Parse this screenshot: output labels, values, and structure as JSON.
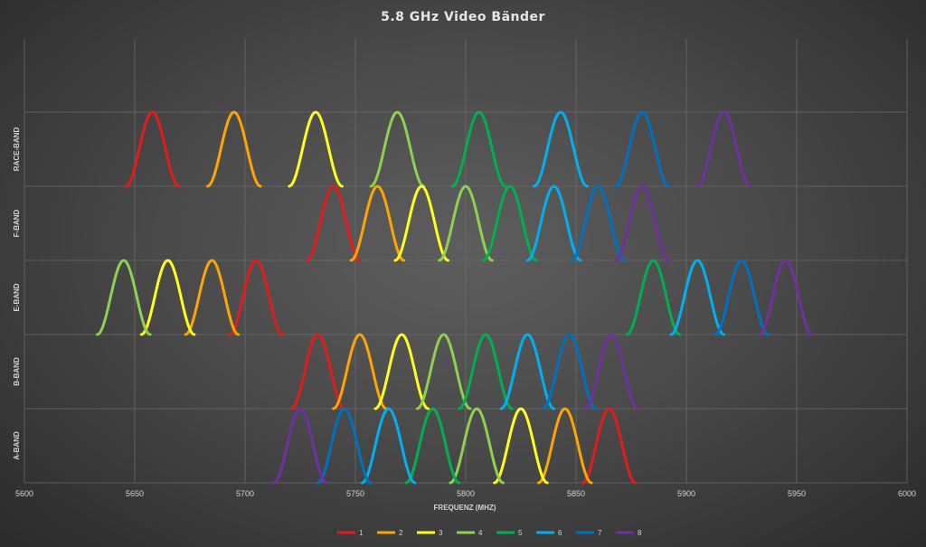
{
  "chart_data": {
    "type": "line",
    "title": "5.8 GHz Video Bänder",
    "xlabel": "FREQUENZ (MHZ)",
    "ylabel": "",
    "xlim": [
      5600,
      6000
    ],
    "xticks": [
      5600,
      5650,
      5700,
      5750,
      5800,
      5850,
      5900,
      5950,
      6000
    ],
    "grid": true,
    "legend_position": "bottom",
    "channel_colors": {
      "1": "#e41b1b",
      "2": "#ffa500",
      "3": "#ffff1a",
      "4": "#8fd14f",
      "5": "#00b050",
      "6": "#00b0f0",
      "7": "#0070c0",
      "8": "#7030a0"
    },
    "legend": [
      "1",
      "2",
      "3",
      "4",
      "5",
      "6",
      "7",
      "8"
    ],
    "bands": [
      {
        "name": "RACE-BAND",
        "channels": [
          5658,
          5695,
          5732,
          5769,
          5806,
          5843,
          5880,
          5917
        ]
      },
      {
        "name": "F-BAND",
        "channels": [
          5740,
          5760,
          5780,
          5800,
          5820,
          5840,
          5860,
          5880
        ]
      },
      {
        "name": "E-BAND",
        "channels": [
          5705,
          5685,
          5665,
          5645,
          5885,
          5905,
          5925,
          5945
        ]
      },
      {
        "name": "B-BAND",
        "channels": [
          5733,
          5752,
          5771,
          5790,
          5809,
          5828,
          5847,
          5866
        ]
      },
      {
        "name": "A-BAND",
        "channels": [
          5865,
          5845,
          5825,
          5805,
          5785,
          5765,
          5745,
          5725
        ]
      }
    ],
    "channel_halfwidth_mhz": 12
  }
}
